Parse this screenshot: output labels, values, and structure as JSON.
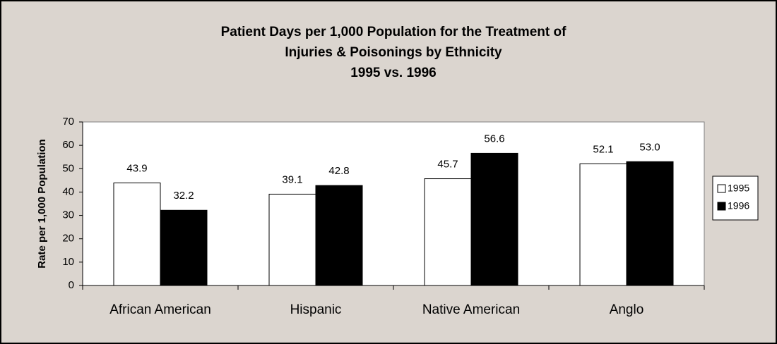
{
  "chart_data": {
    "type": "bar",
    "title": [
      "Patient Days per 1,000 Population for the Treatment of",
      "Injuries & Poisonings by Ethnicity",
      "1995 vs. 1996"
    ],
    "y_label": "Rate per 1,000 Population",
    "categories": [
      "African American",
      "Hispanic",
      "Native American",
      "Anglo"
    ],
    "series": [
      {
        "name": "1995",
        "color": "#ffffff",
        "values": [
          43.9,
          39.1,
          45.7,
          52.1
        ],
        "value_labels": [
          "43.9",
          "39.1",
          "45.7",
          "52.1"
        ]
      },
      {
        "name": "1996",
        "color": "#000000",
        "values": [
          32.2,
          42.8,
          56.6,
          53
        ],
        "value_labels": [
          "32.2",
          "42.8",
          "56.6",
          "53.0"
        ]
      }
    ],
    "ylim": [
      0,
      70
    ],
    "yticks": [
      0,
      10,
      20,
      30,
      40,
      50,
      60,
      70
    ],
    "grid": false,
    "legend": "right"
  }
}
